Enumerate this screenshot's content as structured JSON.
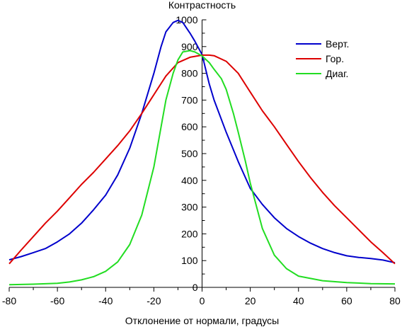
{
  "chart_data": {
    "type": "line",
    "ylabel": "Контрастность",
    "xlabel": "Отклонение от нормали, градусы",
    "xlim": [
      -80,
      80
    ],
    "ylim": [
      0,
      1000
    ],
    "x_ticks": [
      -80,
      -60,
      -40,
      -20,
      0,
      20,
      40,
      60,
      80
    ],
    "y_ticks": [
      0,
      100,
      200,
      300,
      400,
      500,
      600,
      700,
      800,
      900,
      1000
    ],
    "legend_position": "top-right",
    "grid": false,
    "series": [
      {
        "name": "Верт.",
        "color": "#0000cc",
        "x": [
          -80,
          -75,
          -70,
          -65,
          -60,
          -55,
          -50,
          -45,
          -40,
          -35,
          -30,
          -25,
          -20,
          -17,
          -15,
          -12,
          -10,
          -8,
          -5,
          -3,
          0,
          3,
          5,
          10,
          15,
          20,
          25,
          30,
          35,
          40,
          45,
          50,
          55,
          60,
          65,
          70,
          75,
          80
        ],
        "y": [
          103,
          115,
          130,
          145,
          170,
          200,
          240,
          290,
          345,
          420,
          520,
          650,
          800,
          900,
          955,
          990,
          998,
          990,
          950,
          920,
          870,
          760,
          700,
          580,
          470,
          370,
          310,
          260,
          220,
          190,
          165,
          145,
          130,
          118,
          112,
          108,
          102,
          92
        ]
      },
      {
        "name": "Гор.",
        "color": "#dd0000",
        "x": [
          -80,
          -75,
          -70,
          -65,
          -60,
          -55,
          -50,
          -45,
          -40,
          -35,
          -30,
          -25,
          -20,
          -15,
          -10,
          -5,
          0,
          3,
          5,
          10,
          15,
          20,
          25,
          30,
          35,
          40,
          45,
          50,
          55,
          60,
          65,
          70,
          75,
          80
        ],
        "y": [
          88,
          140,
          190,
          240,
          285,
          335,
          385,
          430,
          480,
          530,
          585,
          650,
          720,
          790,
          840,
          860,
          868,
          868,
          866,
          845,
          800,
          730,
          660,
          600,
          535,
          470,
          410,
          355,
          305,
          260,
          215,
          170,
          130,
          88
        ]
      },
      {
        "name": "Диаг.",
        "color": "#22dd22",
        "x": [
          -80,
          -70,
          -60,
          -55,
          -50,
          -45,
          -40,
          -35,
          -30,
          -25,
          -20,
          -17,
          -15,
          -12,
          -10,
          -8,
          -5,
          -3,
          0,
          3,
          5,
          8,
          10,
          13,
          15,
          18,
          20,
          25,
          30,
          35,
          40,
          50,
          60,
          70,
          80
        ],
        "y": [
          10,
          12,
          15,
          20,
          28,
          40,
          60,
          95,
          160,
          270,
          450,
          600,
          700,
          800,
          850,
          880,
          885,
          880,
          865,
          840,
          815,
          780,
          740,
          650,
          580,
          470,
          390,
          220,
          120,
          70,
          42,
          25,
          18,
          14,
          13
        ]
      }
    ]
  }
}
